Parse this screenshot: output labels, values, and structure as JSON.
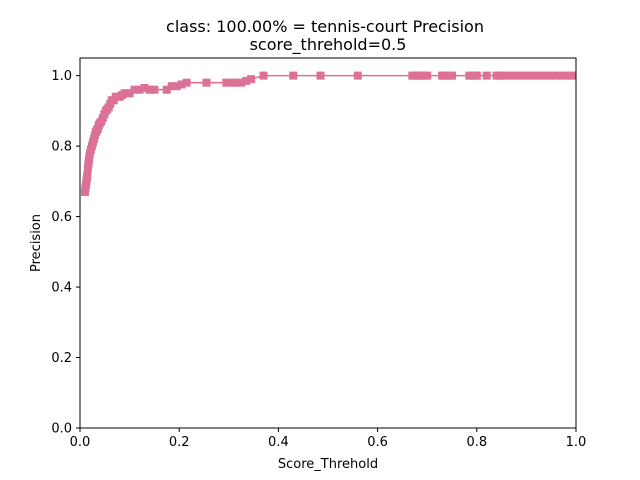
{
  "chart_data": {
    "type": "line",
    "title": "class: 100.00% = tennis-court Precision",
    "subtitle": "score_threhold=0.5",
    "xlabel": "Score_Threhold",
    "ylabel": "Precision",
    "xlim": [
      0.0,
      1.0
    ],
    "ylim": [
      0.0,
      1.05
    ],
    "xticks": [
      "0.0",
      "0.2",
      "0.4",
      "0.6",
      "0.8",
      "1.0"
    ],
    "yticks": [
      "0.0",
      "0.2",
      "0.4",
      "0.6",
      "0.8",
      "1.0"
    ],
    "grid": false,
    "marker": "square",
    "color": "#dc7096",
    "series": [
      {
        "x": [
          0.01,
          0.011,
          0.012,
          0.013,
          0.014,
          0.015,
          0.016,
          0.017,
          0.018,
          0.019,
          0.02,
          0.022,
          0.024,
          0.026,
          0.028,
          0.03,
          0.032,
          0.034,
          0.036,
          0.038,
          0.04,
          0.043,
          0.046,
          0.049,
          0.052,
          0.055,
          0.058,
          0.061,
          0.064,
          0.068,
          0.072,
          0.076,
          0.08,
          0.085,
          0.09,
          0.095,
          0.1,
          0.11,
          0.12,
          0.13,
          0.14,
          0.15,
          0.175,
          0.185,
          0.195,
          0.205,
          0.215,
          0.255,
          0.295,
          0.305,
          0.315,
          0.325,
          0.335,
          0.345,
          0.37,
          0.43,
          0.485,
          0.56,
          0.67,
          0.675,
          0.68,
          0.685,
          0.69,
          0.695,
          0.7,
          0.73,
          0.735,
          0.74,
          0.745,
          0.75,
          0.785,
          0.79,
          0.795,
          0.8,
          0.82,
          0.84,
          0.845,
          0.85,
          0.86,
          0.87,
          0.88,
          0.89,
          0.9,
          0.91,
          0.92,
          0.93,
          0.94,
          0.95,
          0.96,
          0.97,
          0.98,
          0.99,
          1.0
        ],
        "y": [
          0.67,
          0.68,
          0.69,
          0.7,
          0.71,
          0.72,
          0.74,
          0.75,
          0.76,
          0.77,
          0.78,
          0.79,
          0.8,
          0.81,
          0.82,
          0.83,
          0.84,
          0.845,
          0.85,
          0.86,
          0.865,
          0.87,
          0.88,
          0.89,
          0.9,
          0.905,
          0.91,
          0.92,
          0.93,
          0.93,
          0.94,
          0.94,
          0.94,
          0.945,
          0.95,
          0.95,
          0.95,
          0.96,
          0.96,
          0.965,
          0.96,
          0.96,
          0.96,
          0.97,
          0.97,
          0.975,
          0.98,
          0.98,
          0.98,
          0.98,
          0.98,
          0.98,
          0.985,
          0.99,
          1.0,
          1.0,
          1.0,
          1.0,
          1.0,
          1.0,
          1.0,
          1.0,
          1.0,
          1.0,
          1.0,
          1.0,
          1.0,
          1.0,
          1.0,
          1.0,
          1.0,
          1.0,
          1.0,
          1.0,
          1.0,
          1.0,
          1.0,
          1.0,
          1.0,
          1.0,
          1.0,
          1.0,
          1.0,
          1.0,
          1.0,
          1.0,
          1.0,
          1.0,
          1.0,
          1.0,
          1.0,
          1.0,
          1.0
        ]
      }
    ]
  }
}
